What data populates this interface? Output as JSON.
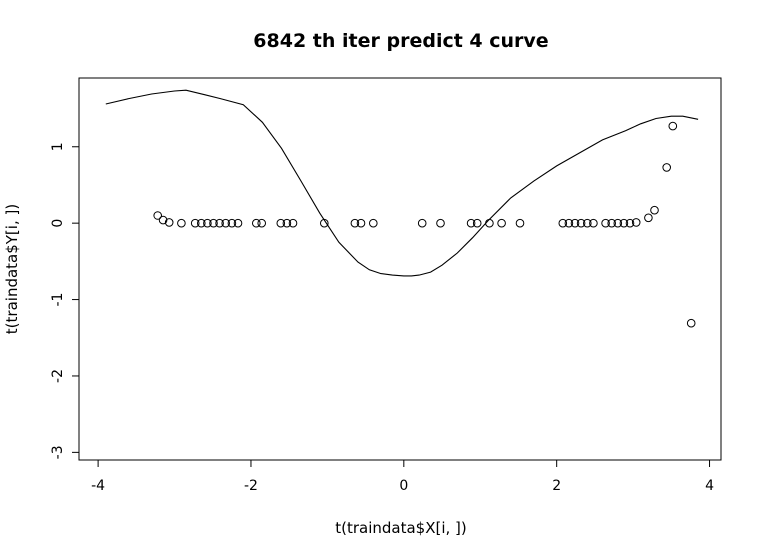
{
  "chart_data": {
    "type": "scatter",
    "title": "6842 th iter  predict 4 curve",
    "xlabel": "t(traindata$X[i, ])",
    "ylabel": "t(traindata$Y[i, ])",
    "xlim": [
      -4.25,
      4.15
    ],
    "ylim": [
      -3.1,
      1.9
    ],
    "xticks": [
      -4,
      -2,
      0,
      2,
      4
    ],
    "yticks": [
      -3,
      -2,
      -1,
      0,
      1
    ],
    "xtick_labels": [
      "-4",
      "-2",
      "0",
      "2",
      "4"
    ],
    "ytick_labels": [
      "-3",
      "-2",
      "-1",
      "0",
      "1"
    ],
    "grid": false,
    "series": [
      {
        "kind": "points",
        "marker": "open-circle",
        "x": [
          -3.22,
          -3.15,
          -3.07,
          -2.91,
          -2.73,
          -2.65,
          -2.57,
          -2.49,
          -2.41,
          -2.33,
          -2.25,
          -2.17,
          -1.93,
          -1.86,
          -1.61,
          -1.53,
          -1.45,
          -1.04,
          -0.64,
          -0.56,
          -0.4,
          0.24,
          0.48,
          0.88,
          0.96,
          1.12,
          1.28,
          1.52,
          2.08,
          2.16,
          2.24,
          2.32,
          2.4,
          2.48,
          2.64,
          2.72,
          2.8,
          2.88,
          2.96,
          3.04,
          3.2,
          3.28,
          3.44,
          3.52,
          3.76
        ],
        "y": [
          0.1,
          0.04,
          0.01,
          0,
          0,
          0,
          0,
          0,
          0,
          0,
          0,
          0,
          0,
          0,
          0,
          0,
          0,
          0,
          0,
          0,
          0,
          0,
          0,
          0,
          0,
          0,
          0,
          0,
          0,
          0,
          0,
          0,
          0,
          0,
          0,
          0,
          0,
          0,
          0,
          0.01,
          0.07,
          0.17,
          0.73,
          1.27,
          -1.31
        ]
      },
      {
        "kind": "line",
        "x": [
          -3.9,
          -3.6,
          -3.3,
          -3.0,
          -2.85,
          -2.6,
          -2.4,
          -2.1,
          -1.85,
          -1.6,
          -1.35,
          -1.1,
          -0.85,
          -0.6,
          -0.45,
          -0.3,
          -0.15,
          0.0,
          0.1,
          0.2,
          0.35,
          0.5,
          0.7,
          0.9,
          1.1,
          1.4,
          1.7,
          2.0,
          2.3,
          2.6,
          2.9,
          3.1,
          3.3,
          3.5,
          3.65,
          3.85
        ],
        "y": [
          1.56,
          1.63,
          1.69,
          1.73,
          1.74,
          1.68,
          1.63,
          1.55,
          1.32,
          0.98,
          0.56,
          0.13,
          -0.25,
          -0.51,
          -0.61,
          -0.66,
          -0.68,
          -0.69,
          -0.69,
          -0.68,
          -0.64,
          -0.55,
          -0.39,
          -0.19,
          0.03,
          0.33,
          0.55,
          0.75,
          0.92,
          1.09,
          1.21,
          1.3,
          1.37,
          1.4,
          1.4,
          1.36
        ]
      }
    ]
  }
}
